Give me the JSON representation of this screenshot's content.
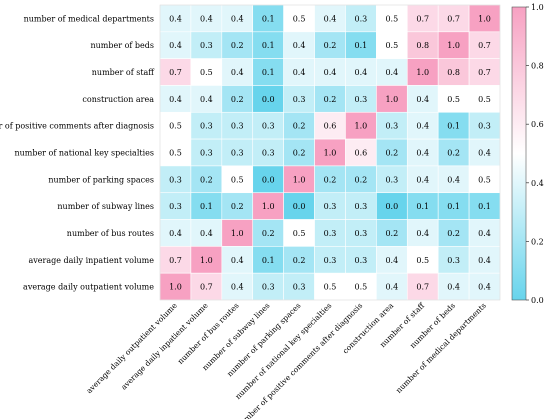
{
  "chart_data": {
    "type": "heatmap",
    "row_labels": [
      "number of medical departments",
      "number of beds",
      "number of staff",
      "construction area",
      "number of positive comments after diagnosis",
      "number of national key specialties",
      "number of parking spaces",
      "number of subway lines",
      "number of bus routes",
      "average daily inpatient volume",
      "average daily outpatient volume"
    ],
    "column_labels": [
      "average daily outpatient volume",
      "average daily inpatient volume",
      "number of bus routes",
      "number of subway lines",
      "number of parking spaces",
      "number of national key specialties",
      "number of positive comments after diagnosis",
      "construction area",
      "number of staff",
      "number of beds",
      "number of medical departments"
    ],
    "values": [
      [
        0.4,
        0.4,
        0.4,
        0.1,
        0.5,
        0.4,
        0.3,
        0.5,
        0.7,
        0.7,
        1.0
      ],
      [
        0.4,
        0.3,
        0.2,
        0.1,
        0.4,
        0.2,
        0.1,
        0.5,
        0.8,
        1.0,
        0.7
      ],
      [
        0.7,
        0.5,
        0.4,
        0.1,
        0.4,
        0.4,
        0.4,
        0.4,
        1.0,
        0.8,
        0.7
      ],
      [
        0.4,
        0.4,
        0.2,
        0.0,
        0.3,
        0.2,
        0.3,
        1.0,
        0.4,
        0.5,
        0.5
      ],
      [
        0.5,
        0.3,
        0.3,
        0.3,
        0.2,
        0.6,
        1.0,
        0.3,
        0.4,
        0.1,
        0.3
      ],
      [
        0.5,
        0.3,
        0.3,
        0.3,
        0.2,
        1.0,
        0.6,
        0.2,
        0.4,
        0.2,
        0.4
      ],
      [
        0.3,
        0.2,
        0.5,
        0.0,
        1.0,
        0.2,
        0.2,
        0.3,
        0.4,
        0.4,
        0.5
      ],
      [
        0.3,
        0.1,
        0.2,
        1.0,
        0.0,
        0.3,
        0.3,
        0.0,
        0.1,
        0.1,
        0.1
      ],
      [
        0.4,
        0.4,
        1.0,
        0.2,
        0.5,
        0.3,
        0.3,
        0.2,
        0.4,
        0.2,
        0.4
      ],
      [
        0.7,
        1.0,
        0.4,
        0.1,
        0.2,
        0.3,
        0.3,
        0.4,
        0.5,
        0.3,
        0.4
      ],
      [
        1.0,
        0.7,
        0.4,
        0.3,
        0.3,
        0.5,
        0.5,
        0.4,
        0.7,
        0.4,
        0.4
      ]
    ],
    "colorbar": {
      "range": [
        0.0,
        1.0
      ],
      "ticks": [
        "0.0",
        "0.2",
        "0.4",
        "0.6",
        "0.8",
        "1.0"
      ],
      "colors": [
        "#67d4ec",
        "#ffffff",
        "#f7a1c2"
      ]
    },
    "grid": true
  }
}
